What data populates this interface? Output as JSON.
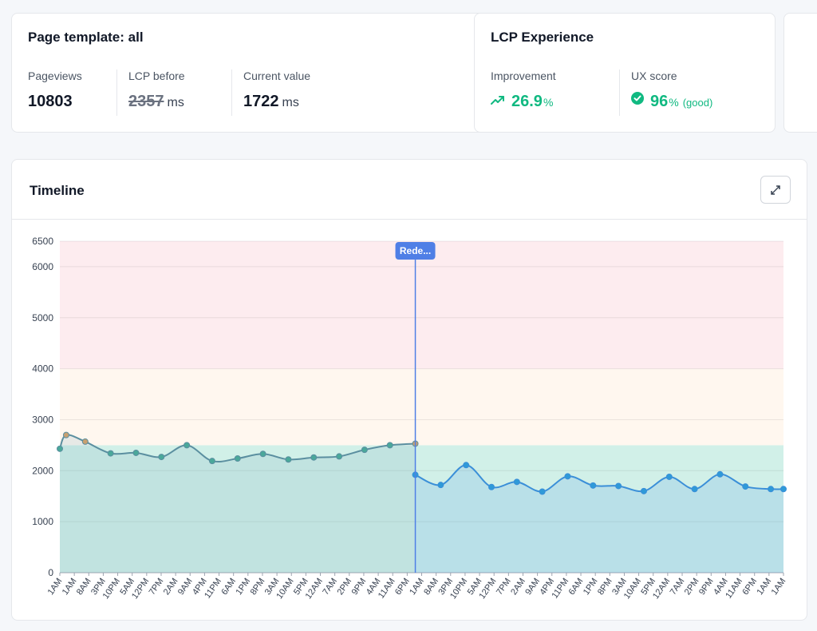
{
  "template_card": {
    "title": "Page template: all",
    "pageviews_label": "Pageviews",
    "pageviews_value": "10803",
    "lcp_before_label": "LCP before",
    "lcp_before_value": "2357",
    "lcp_before_unit": "ms",
    "current_label": "Current value",
    "current_value": "1722",
    "current_unit": "ms"
  },
  "lcp_card": {
    "title": "LCP Experience",
    "improvement_label": "Improvement",
    "improvement_value": "26.9",
    "improvement_unit": "%",
    "improvement_icon": "trending-up-icon",
    "ux_label": "UX score",
    "ux_value": "96",
    "ux_unit": "%",
    "ux_quality": "(good)",
    "ux_icon": "check-circle-icon",
    "accent": "#10b981"
  },
  "timeline": {
    "title": "Timeline",
    "expand_icon": "expand-icon"
  },
  "chart_data": {
    "type": "line",
    "ylim": [
      0,
      6500
    ],
    "yticks": [
      0,
      1000,
      2000,
      3000,
      4000,
      5000,
      6000,
      6500
    ],
    "x": [
      "1AM",
      "1AM",
      "8AM",
      "3PM",
      "10PM",
      "5AM",
      "12PM",
      "7PM",
      "2AM",
      "9AM",
      "4PM",
      "11PM",
      "6AM",
      "1PM",
      "8PM",
      "3AM",
      "10AM",
      "5PM",
      "12AM",
      "7AM",
      "2PM",
      "9PM",
      "4AM",
      "11AM",
      "6PM",
      "1AM",
      "8AM",
      "3PM",
      "10PM",
      "5AM",
      "12PM",
      "7PM",
      "2AM",
      "9AM",
      "4PM",
      "11PM",
      "6AM",
      "1PM",
      "8PM",
      "3AM",
      "10AM",
      "5PM",
      "12AM",
      "7AM",
      "2PM",
      "9PM",
      "4AM",
      "11AM",
      "6PM",
      "1AM",
      "1AM"
    ],
    "zones": [
      {
        "from": 0,
        "to": 2500,
        "color": "#d1f0e8"
      },
      {
        "from": 2500,
        "to": 4000,
        "color": "#fff7ef"
      },
      {
        "from": 4000,
        "to": 6500,
        "color": "#fdecef"
      }
    ],
    "annotation": {
      "label": "Rede...",
      "x_index": 25,
      "color": "#4f7fe6"
    },
    "series": [
      {
        "color": "#5b8fa0",
        "points": [
          [
            0,
            2430
          ],
          [
            0.5,
            2700
          ],
          [
            2,
            2570
          ],
          [
            4,
            2340
          ],
          [
            6,
            2350
          ],
          [
            8,
            2270
          ],
          [
            10,
            2500
          ],
          [
            12,
            2190
          ],
          [
            14,
            2240
          ],
          [
            16,
            2330
          ],
          [
            18,
            2220
          ],
          [
            20,
            2260
          ],
          [
            22,
            2280
          ],
          [
            24,
            2410
          ],
          [
            26,
            2500
          ],
          [
            28,
            2530
          ]
        ]
      },
      {
        "color": "#3b8fd8",
        "points": [
          [
            28,
            1920
          ],
          [
            30,
            1720
          ],
          [
            32,
            2110
          ],
          [
            34,
            1680
          ],
          [
            36,
            1780
          ],
          [
            38,
            1590
          ],
          [
            40,
            1890
          ],
          [
            42,
            1710
          ],
          [
            44,
            1700
          ],
          [
            46,
            1600
          ],
          [
            48,
            1880
          ],
          [
            50,
            1640
          ],
          [
            52,
            1930
          ],
          [
            54,
            1690
          ],
          [
            56,
            1640
          ],
          [
            57,
            1640
          ]
        ]
      }
    ]
  }
}
